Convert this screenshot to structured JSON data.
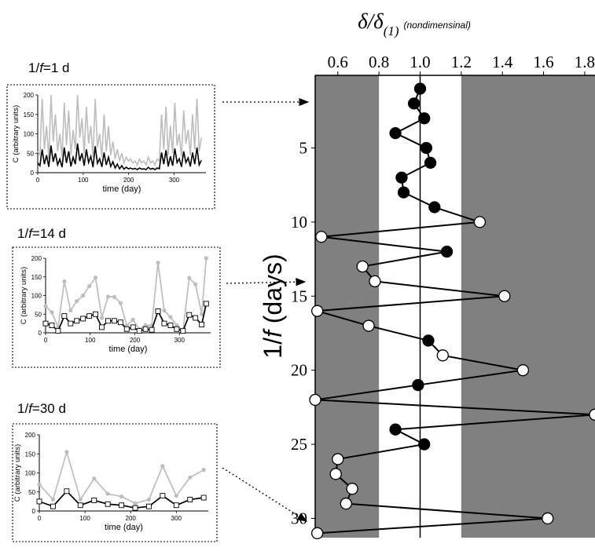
{
  "chart_data": [
    {
      "type": "scatter",
      "role": "main",
      "title_main": "δ/δ",
      "title_sub": "(1)",
      "title_note": "(nondimensinal)",
      "xlabel": "",
      "ylabel_prefix": "1/",
      "ylabel_var": "f",
      "ylabel_suffix": " (days)",
      "x_ticks": [
        "0.6",
        "0.8",
        "1.0",
        "1.2",
        "1.4",
        "1.6",
        "1.8"
      ],
      "x_tick_values": [
        0.6,
        0.8,
        1.0,
        1.2,
        1.4,
        1.6,
        1.8
      ],
      "y_ticks": [
        "5",
        "10",
        "15",
        "20",
        "25",
        "30"
      ],
      "y_tick_values": [
        5,
        10,
        15,
        20,
        25,
        30
      ],
      "xlim": [
        0.49,
        1.85
      ],
      "ylim": [
        31.3,
        0.1
      ],
      "reference_line_x": 1.0,
      "shaded_regions": [
        [
          0.49,
          0.8
        ],
        [
          1.2,
          1.85
        ]
      ],
      "colors": {
        "shade": "#808080",
        "line": "#000000",
        "filled": "#000000",
        "open": "#ffffff"
      },
      "points": [
        {
          "x": 1.0,
          "y": 1,
          "filled": true
        },
        {
          "x": 0.97,
          "y": 2,
          "filled": true
        },
        {
          "x": 1.02,
          "y": 3,
          "filled": true
        },
        {
          "x": 0.88,
          "y": 4,
          "filled": true
        },
        {
          "x": 1.03,
          "y": 5,
          "filled": true
        },
        {
          "x": 1.05,
          "y": 6,
          "filled": true
        },
        {
          "x": 0.91,
          "y": 7,
          "filled": true
        },
        {
          "x": 0.92,
          "y": 8,
          "filled": true
        },
        {
          "x": 1.07,
          "y": 9,
          "filled": true
        },
        {
          "x": 1.29,
          "y": 10,
          "filled": false
        },
        {
          "x": 0.52,
          "y": 11,
          "filled": false
        },
        {
          "x": 1.13,
          "y": 12,
          "filled": true
        },
        {
          "x": 0.72,
          "y": 13,
          "filled": false
        },
        {
          "x": 0.78,
          "y": 14,
          "filled": false
        },
        {
          "x": 1.41,
          "y": 15,
          "filled": false
        },
        {
          "x": 0.5,
          "y": 16,
          "filled": false
        },
        {
          "x": 0.75,
          "y": 17,
          "filled": false
        },
        {
          "x": 1.04,
          "y": 18,
          "filled": true
        },
        {
          "x": 1.11,
          "y": 19,
          "filled": false
        },
        {
          "x": 1.5,
          "y": 20,
          "filled": false
        },
        {
          "x": 0.99,
          "y": 21,
          "filled": true
        },
        {
          "x": 0.49,
          "y": 22,
          "filled": false
        },
        {
          "x": 1.85,
          "y": 23,
          "filled": false
        },
        {
          "x": 0.88,
          "y": 24,
          "filled": true
        },
        {
          "x": 1.02,
          "y": 25,
          "filled": true
        },
        {
          "x": 0.6,
          "y": 26,
          "filled": false
        },
        {
          "x": 0.59,
          "y": 27,
          "filled": false
        },
        {
          "x": 0.67,
          "y": 28,
          "filled": false
        },
        {
          "x": 0.64,
          "y": 29,
          "filled": false
        },
        {
          "x": 1.62,
          "y": 30,
          "filled": false
        },
        {
          "x": 0.5,
          "y": 31,
          "filled": false
        }
      ]
    },
    {
      "type": "line",
      "role": "inset",
      "panel_title": "1/f=1 d",
      "title_prefix": "1/",
      "title_var": "f",
      "title_suffix": "=1 d",
      "xlabel": "time (day)",
      "ylabel": "C (arbitrary units)",
      "xlim": [
        0,
        370
      ],
      "ylim": [
        0,
        200
      ],
      "x_ticks": [
        "0",
        "100",
        "200",
        "300"
      ],
      "x_tick_values": [
        0,
        100,
        200,
        300
      ],
      "y_ticks": [
        "0",
        "50",
        "100",
        "150",
        "200"
      ],
      "y_tick_values": [
        0,
        50,
        100,
        150,
        200
      ],
      "series": [
        {
          "color": "#bdbdbd",
          "marker": "none",
          "values": [
            55,
            45,
            190,
            60,
            120,
            35,
            200,
            80,
            150,
            55,
            100,
            40,
            180,
            70,
            160,
            45,
            110,
            60,
            200,
            90,
            140,
            50,
            170,
            75,
            120,
            40,
            190,
            65,
            100,
            40,
            150,
            55,
            120,
            45,
            80,
            35,
            60,
            30,
            50,
            25,
            40,
            30,
            35,
            25,
            30,
            20,
            35,
            25,
            30,
            20,
            40,
            25,
            30,
            20,
            35,
            30,
            150,
            60,
            170,
            45,
            120,
            50,
            180,
            70,
            100,
            40,
            160,
            75,
            110,
            45,
            150,
            60,
            190,
            55,
            90
          ]
        },
        {
          "color": "#000000",
          "marker": "none",
          "values": [
            25,
            18,
            60,
            22,
            45,
            15,
            70,
            28,
            50,
            20,
            35,
            14,
            65,
            25,
            55,
            16,
            40,
            22,
            75,
            30,
            50,
            18,
            60,
            26,
            42,
            14,
            68,
            24,
            36,
            15,
            52,
            20,
            40,
            16,
            28,
            12,
            22,
            10,
            18,
            9,
            14,
            10,
            12,
            9,
            11,
            8,
            12,
            9,
            10,
            8,
            14,
            9,
            11,
            8,
            12,
            10,
            52,
            22,
            58,
            16,
            42,
            18,
            62,
            26,
            36,
            15,
            55,
            26,
            38,
            16,
            52,
            22,
            65,
            20,
            32
          ]
        }
      ]
    },
    {
      "type": "line",
      "role": "inset",
      "panel_title": "1/f=14 d",
      "title_prefix": "1/",
      "title_var": "f",
      "title_suffix": "=14 d",
      "xlabel": "time (day)",
      "ylabel": "C (arbitrary units)",
      "xlim": [
        0,
        370
      ],
      "ylim": [
        0,
        200
      ],
      "x_ticks": [
        "0",
        "100",
        "200",
        "300"
      ],
      "x_tick_values": [
        0,
        100,
        200,
        300
      ],
      "y_ticks": [
        "0",
        "50",
        "100",
        "150",
        "200"
      ],
      "y_tick_values": [
        0,
        50,
        100,
        150,
        200
      ],
      "x": [
        0,
        14,
        28,
        42,
        56,
        70,
        84,
        98,
        112,
        126,
        140,
        154,
        168,
        182,
        196,
        210,
        224,
        238,
        252,
        266,
        280,
        294,
        308,
        322,
        336,
        350,
        360
      ],
      "series": [
        {
          "color": "#bdbdbd",
          "marker": "circle",
          "values": [
            72,
            55,
            15,
            138,
            60,
            85,
            100,
            125,
            148,
            40,
            97,
            96,
            80,
            20,
            35,
            10,
            20,
            20,
            188,
            60,
            42,
            20,
            5,
            147,
            130,
            50,
            208
          ]
        },
        {
          "color": "#000000",
          "marker": "square",
          "values": [
            25,
            20,
            5,
            45,
            25,
            32,
            38,
            45,
            50,
            15,
            32,
            32,
            28,
            10,
            15,
            5,
            10,
            8,
            58,
            25,
            20,
            10,
            5,
            48,
            40,
            22,
            78
          ]
        }
      ]
    },
    {
      "type": "line",
      "role": "inset",
      "panel_title": "1/f=30 d",
      "title_prefix": "1/",
      "title_var": "f",
      "title_suffix": "=30 d",
      "xlabel": "time (day)",
      "ylabel": "C (arbitrary units)",
      "xlim": [
        0,
        370
      ],
      "ylim": [
        0,
        200
      ],
      "x_ticks": [
        "0",
        "100",
        "200",
        "300"
      ],
      "x_tick_values": [
        0,
        100,
        200,
        300
      ],
      "y_ticks": [
        "0",
        "50",
        "100",
        "150",
        "200"
      ],
      "y_tick_values": [
        0,
        50,
        100,
        150,
        200
      ],
      "x": [
        0,
        30,
        60,
        90,
        120,
        150,
        180,
        210,
        240,
        270,
        300,
        330,
        360
      ],
      "series": [
        {
          "color": "#bdbdbd",
          "marker": "circle",
          "values": [
            70,
            30,
            155,
            30,
            85,
            45,
            38,
            20,
            30,
            118,
            40,
            88,
            108
          ]
        },
        {
          "color": "#000000",
          "marker": "square",
          "values": [
            25,
            12,
            52,
            15,
            28,
            18,
            15,
            8,
            12,
            40,
            15,
            30,
            35
          ]
        }
      ]
    }
  ]
}
